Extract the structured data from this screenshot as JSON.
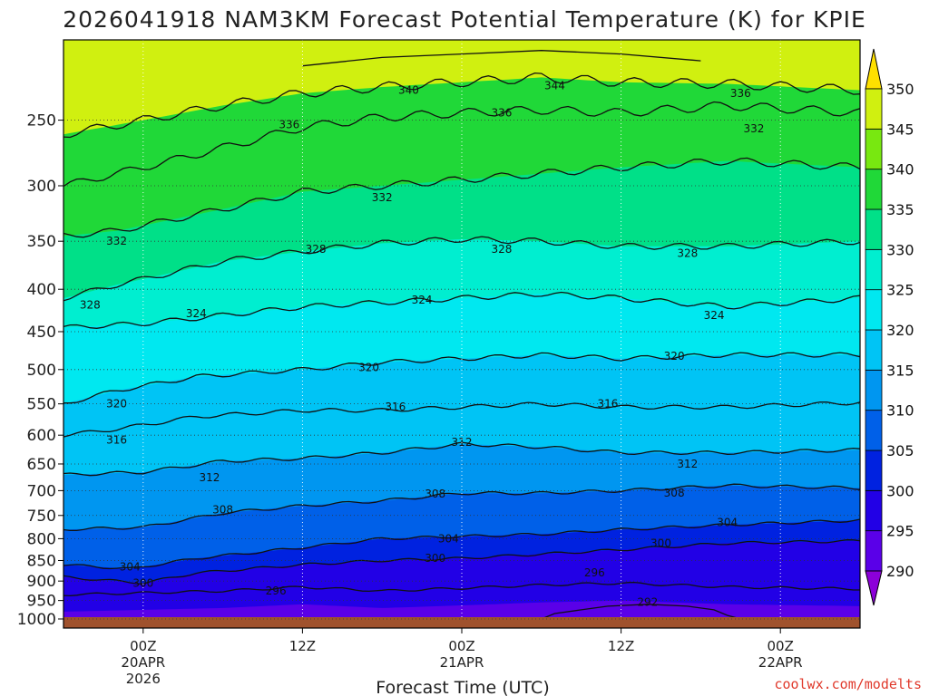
{
  "chart_data": {
    "type": "contour",
    "title": "2026041918 NAM3KM Forecast Potential Temperature (K) for KPIE",
    "xlabel": "Forecast Time (UTC)",
    "credit": "coolwx.com/modelts",
    "x_ticks": [
      {
        "hours": 6,
        "lines": [
          "00Z",
          "20APR",
          "2026"
        ]
      },
      {
        "hours": 18,
        "lines": [
          "12Z"
        ]
      },
      {
        "hours": 30,
        "lines": [
          "00Z",
          "21APR"
        ]
      },
      {
        "hours": 42,
        "lines": [
          "12Z"
        ]
      },
      {
        "hours": 54,
        "lines": [
          "00Z",
          "22APR"
        ]
      }
    ],
    "xlim_hours": [
      0,
      60
    ],
    "y_axis": {
      "scale": "log-pressure",
      "inverted": true,
      "ylim": [
        1000,
        200
      ],
      "ticks": [
        250,
        300,
        350,
        400,
        450,
        500,
        550,
        600,
        650,
        700,
        750,
        800,
        850,
        900,
        950,
        1000
      ]
    },
    "colorbar": {
      "levels": [
        290,
        295,
        300,
        305,
        310,
        315,
        320,
        325,
        330,
        335,
        340,
        345,
        350
      ],
      "colors": [
        "#8c00d9",
        "#5a00e8",
        "#2200e6",
        "#0022e0",
        "#0060e8",
        "#0096f0",
        "#00c4f5",
        "#00e8f0",
        "#00eed0",
        "#00e088",
        "#20d838",
        "#78e810",
        "#d0f010",
        "#ffe000"
      ]
    },
    "series": [
      {
        "name": "292",
        "kind": "isentrope",
        "p": [
          1000,
          985,
          975,
          965,
          960,
          965,
          975,
          990,
          1000
        ],
        "x": [
          36,
          37,
          39,
          41,
          44,
          47,
          49,
          50,
          51
        ],
        "labels": [
          {
            "x": 44,
            "p": 955
          }
        ]
      },
      {
        "name": "296",
        "kind": "isentrope",
        "p": [
          935,
          930,
          925,
          915,
          925,
          918,
          910,
          905,
          915,
          920
        ],
        "x": [
          0,
          6,
          12,
          18,
          24,
          30,
          36,
          42,
          50,
          60
        ],
        "labels": [
          {
            "x": 16,
            "p": 925
          },
          {
            "x": 40,
            "p": 880
          }
        ]
      },
      {
        "name": "300",
        "kind": "isentrope",
        "p": [
          890,
          905,
          880,
          860,
          850,
          845,
          835,
          825,
          810,
          805
        ],
        "x": [
          0,
          6,
          10,
          18,
          24,
          30,
          36,
          42,
          50,
          60
        ],
        "labels": [
          {
            "x": 6,
            "p": 905
          },
          {
            "x": 28,
            "p": 845
          },
          {
            "x": 45,
            "p": 810
          }
        ]
      },
      {
        "name": "304",
        "kind": "isentrope",
        "p": [
          860,
          870,
          845,
          820,
          800,
          795,
          790,
          780,
          770,
          760
        ],
        "x": [
          0,
          5,
          10,
          18,
          24,
          30,
          36,
          42,
          50,
          60
        ],
        "labels": [
          {
            "x": 5,
            "p": 865
          },
          {
            "x": 29,
            "p": 800
          },
          {
            "x": 50,
            "p": 765
          }
        ]
      },
      {
        "name": "308",
        "kind": "isentrope",
        "p": [
          780,
          775,
          745,
          730,
          720,
          705,
          705,
          700,
          690,
          695
        ],
        "x": [
          0,
          6,
          12,
          18,
          24,
          30,
          36,
          42,
          50,
          60
        ],
        "labels": [
          {
            "x": 12,
            "p": 738
          },
          {
            "x": 28,
            "p": 706
          },
          {
            "x": 46,
            "p": 705
          }
        ]
      },
      {
        "name": "312",
        "kind": "isentrope",
        "p": [
          670,
          665,
          645,
          640,
          630,
          615,
          620,
          630,
          630,
          625
        ],
        "x": [
          0,
          6,
          12,
          18,
          24,
          30,
          36,
          42,
          50,
          60
        ],
        "labels": [
          {
            "x": 11,
            "p": 675
          },
          {
            "x": 30,
            "p": 612
          },
          {
            "x": 47,
            "p": 650
          }
        ]
      },
      {
        "name": "316",
        "kind": "isentrope",
        "p": [
          600,
          590,
          570,
          560,
          560,
          555,
          550,
          555,
          555,
          548
        ],
        "x": [
          0,
          4,
          10,
          18,
          24,
          30,
          36,
          42,
          50,
          60
        ],
        "labels": [
          {
            "x": 4,
            "p": 608
          },
          {
            "x": 25,
            "p": 555
          },
          {
            "x": 41,
            "p": 550
          }
        ]
      },
      {
        "name": "320",
        "kind": "isentrope",
        "p": [
          550,
          530,
          510,
          500,
          490,
          485,
          480,
          485,
          480,
          480
        ],
        "x": [
          0,
          4,
          10,
          18,
          24,
          30,
          36,
          42,
          50,
          60
        ],
        "labels": [
          {
            "x": 4,
            "p": 550
          },
          {
            "x": 23,
            "p": 497
          },
          {
            "x": 46,
            "p": 482
          }
        ]
      },
      {
        "name": "324",
        "kind": "isentrope",
        "p": [
          445,
          440,
          430,
          420,
          415,
          410,
          405,
          410,
          420,
          410
        ],
        "x": [
          0,
          6,
          12,
          18,
          24,
          30,
          36,
          42,
          50,
          60
        ],
        "labels": [
          {
            "x": 10,
            "p": 428
          },
          {
            "x": 27,
            "p": 412
          },
          {
            "x": 49,
            "p": 430
          }
        ]
      },
      {
        "name": "328",
        "kind": "isentrope",
        "p": [
          410,
          395,
          370,
          360,
          352,
          348,
          350,
          355,
          355,
          350
        ],
        "x": [
          0,
          4,
          12,
          18,
          24,
          30,
          36,
          42,
          50,
          60
        ],
        "labels": [
          {
            "x": 2,
            "p": 418
          },
          {
            "x": 19,
            "p": 358
          },
          {
            "x": 33,
            "p": 358
          },
          {
            "x": 47,
            "p": 362
          }
        ]
      },
      {
        "name": "332",
        "kind": "isentrope",
        "p": [
          345,
          340,
          320,
          305,
          300,
          295,
          290,
          285,
          280,
          285
        ],
        "x": [
          0,
          4,
          12,
          18,
          24,
          30,
          36,
          42,
          50,
          60
        ],
        "labels": [
          {
            "x": 4,
            "p": 350
          },
          {
            "x": 24,
            "p": 310
          },
          {
            "x": 52,
            "p": 256
          }
        ]
      },
      {
        "name": "336",
        "kind": "isentrope",
        "p": [
          300,
          285,
          270,
          255,
          248,
          245,
          243,
          245,
          240,
          245
        ],
        "x": [
          0,
          6,
          12,
          18,
          24,
          30,
          36,
          42,
          50,
          60
        ],
        "labels": [
          {
            "x": 17,
            "p": 253
          },
          {
            "x": 33,
            "p": 245
          },
          {
            "x": 51,
            "p": 232
          }
        ]
      },
      {
        "name": "340",
        "kind": "isentrope",
        "p": [
          260,
          250,
          240,
          232,
          228,
          225,
          222,
          225,
          226,
          230
        ],
        "x": [
          0,
          6,
          12,
          18,
          24,
          30,
          36,
          42,
          50,
          60
        ],
        "labels": [
          {
            "x": 26,
            "p": 230
          }
        ]
      },
      {
        "name": "344",
        "kind": "isentrope",
        "p": [
          215,
          210,
          208,
          206,
          208,
          212
        ],
        "x": [
          18,
          24,
          30,
          36,
          42,
          48
        ],
        "labels": [
          {
            "x": 37,
            "p": 227
          }
        ]
      }
    ]
  }
}
